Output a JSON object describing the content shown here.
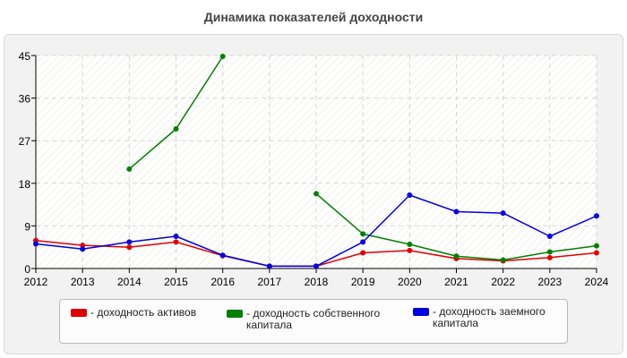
{
  "title": "Динамика показателей доходности",
  "chart_data": {
    "type": "line",
    "x": [
      2012,
      2013,
      2014,
      2015,
      2016,
      2017,
      2018,
      2019,
      2020,
      2021,
      2022,
      2023,
      2024
    ],
    "x_tick_labels": [
      "2012",
      "2013",
      "2014",
      "2015",
      "2016",
      "2017",
      "2018",
      "2019",
      "2020",
      "2021",
      "2022",
      "2023",
      "2024"
    ],
    "y_ticks": [
      0,
      9,
      18,
      27,
      36,
      45
    ],
    "y_tick_labels": [
      "0",
      "9",
      "18",
      "27",
      "36",
      "45"
    ],
    "ylim": [
      0,
      45
    ],
    "grid": true,
    "legend_position": "bottom",
    "series": [
      {
        "name": "- доходность активов",
        "name_lines": [
          "- доходность активов"
        ],
        "color": "#e00000",
        "values": [
          5.9,
          4.9,
          4.5,
          5.6,
          2.7,
          0.5,
          0.5,
          3.3,
          3.8,
          2.1,
          1.6,
          2.3,
          3.3
        ]
      },
      {
        "name": "- доходность собственного капитала",
        "name_lines": [
          "- доходность собственного",
          "капитала"
        ],
        "color": "#008000",
        "values": [
          null,
          null,
          21.0,
          29.5,
          44.8,
          null,
          15.8,
          7.3,
          5.1,
          2.6,
          1.8,
          3.5,
          4.8
        ]
      },
      {
        "name": "- доходность заемного капитала",
        "name_lines": [
          "- доходность заемного",
          "капитала"
        ],
        "color": "#0000e0",
        "values": [
          5.2,
          4.1,
          5.6,
          6.8,
          2.8,
          0.5,
          0.5,
          5.6,
          15.5,
          12.0,
          11.7,
          6.8,
          11.1
        ]
      }
    ]
  }
}
